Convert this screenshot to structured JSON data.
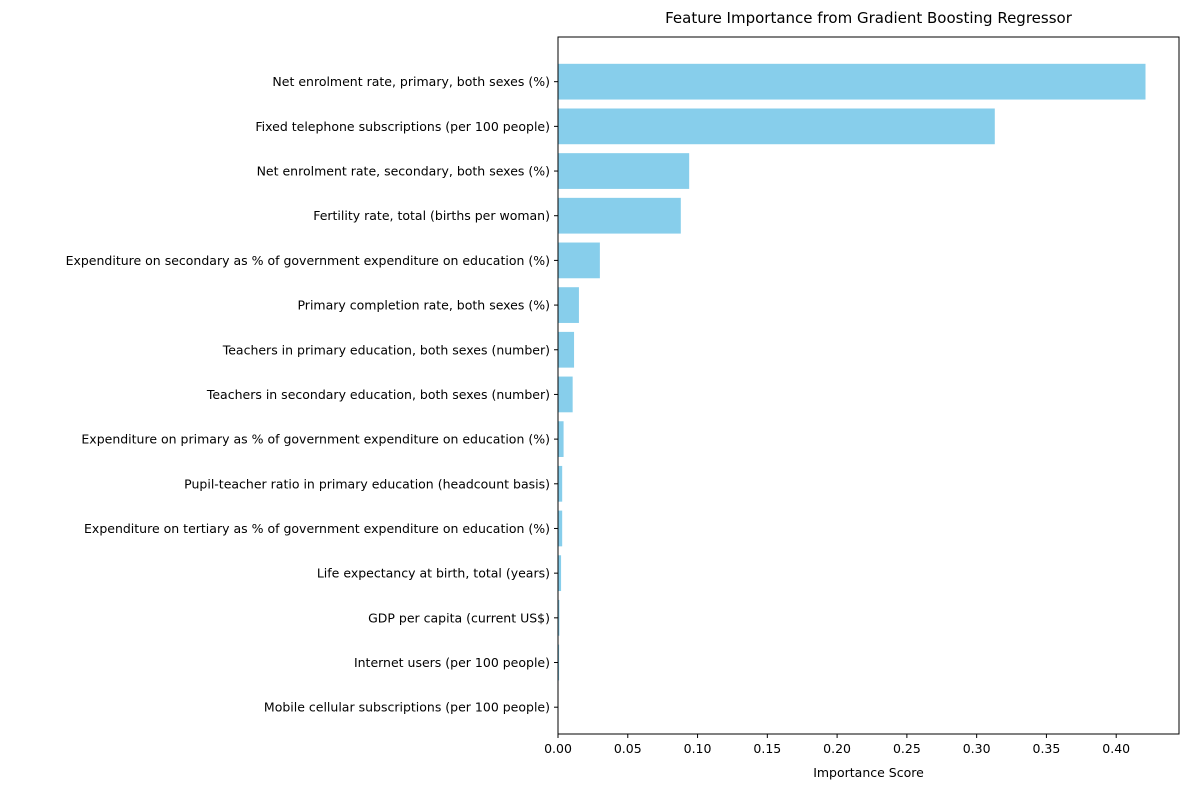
{
  "chart_data": {
    "type": "bar",
    "orientation": "horizontal",
    "title": "Feature Importance from Gradient Boosting Regressor",
    "xlabel": "Importance Score",
    "ylabel": "",
    "xlim": [
      0,
      0.445
    ],
    "x_ticks": [
      "0.00",
      "0.05",
      "0.10",
      "0.15",
      "0.20",
      "0.25",
      "0.30",
      "0.35",
      "0.40"
    ],
    "bar_color": "#87CEEB",
    "categories": [
      "Net enrolment rate, primary, both sexes (%)",
      "Fixed telephone subscriptions (per 100 people)",
      "Net enrolment rate, secondary, both sexes (%)",
      "Fertility rate, total (births per woman)",
      "Expenditure on secondary as % of government expenditure on education (%)",
      "Primary completion rate, both sexes (%)",
      "Teachers in primary education, both sexes (number)",
      "Teachers in secondary education, both sexes (number)",
      "Expenditure on primary as % of government expenditure on education (%)",
      "Pupil-teacher ratio in primary education (headcount basis)",
      "Expenditure on tertiary as % of government expenditure on education (%)",
      "Life expectancy at birth, total (years)",
      "GDP per capita (current US$)",
      "Internet users (per 100 people)",
      "Mobile cellular subscriptions (per 100 people)"
    ],
    "values": [
      0.421,
      0.313,
      0.094,
      0.088,
      0.03,
      0.015,
      0.0115,
      0.0105,
      0.004,
      0.003,
      0.003,
      0.0022,
      0.001,
      0.0008,
      0.0003
    ]
  }
}
